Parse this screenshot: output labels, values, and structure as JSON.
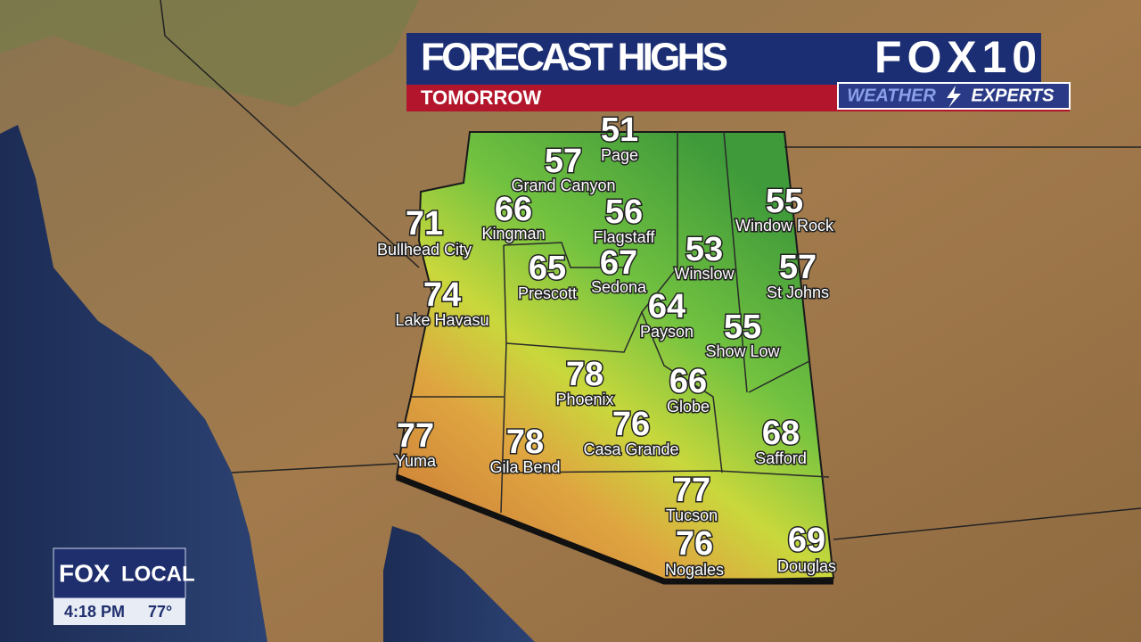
{
  "header": {
    "title": "FORECAST HIGHS",
    "subtitle": "TOMORROW",
    "logo": "FOX10",
    "badge_left": "WEATHER",
    "badge_right": "EXPERTS"
  },
  "cities": [
    {
      "name": "Page",
      "high": 51
    },
    {
      "name": "Grand Canyon",
      "high": 57
    },
    {
      "name": "Kingman",
      "high": 66
    },
    {
      "name": "Flagstaff",
      "high": 56
    },
    {
      "name": "Bullhead City",
      "high": 71
    },
    {
      "name": "Window Rock",
      "high": 55
    },
    {
      "name": "Winslow",
      "high": 53
    },
    {
      "name": "Prescott",
      "high": 65
    },
    {
      "name": "Sedona",
      "high": 67
    },
    {
      "name": "St Johns",
      "high": 57
    },
    {
      "name": "Lake Havasu",
      "high": 74
    },
    {
      "name": "Payson",
      "high": 64
    },
    {
      "name": "Show Low",
      "high": 55
    },
    {
      "name": "Phoenix",
      "high": 78
    },
    {
      "name": "Globe",
      "high": 66
    },
    {
      "name": "Casa Grande",
      "high": 76
    },
    {
      "name": "Safford",
      "high": 68
    },
    {
      "name": "Yuma",
      "high": 77
    },
    {
      "name": "Gila Bend",
      "high": 78
    },
    {
      "name": "Tucson",
      "high": 77
    },
    {
      "name": "Nogales",
      "high": 76
    },
    {
      "name": "Douglas",
      "high": 69
    }
  ],
  "bug": {
    "brand": "FOX",
    "brand_suffix": "LOCAL",
    "time": "4:18 PM",
    "temperature": "77°"
  }
}
